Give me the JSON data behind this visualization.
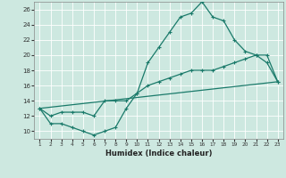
{
  "xlabel": "Humidex (Indice chaleur)",
  "bg_color": "#cde8e0",
  "grid_color": "#b0d8cc",
  "line_color": "#1a7a6a",
  "xlim": [
    0.5,
    23.5
  ],
  "ylim": [
    9,
    27
  ],
  "xticks": [
    1,
    2,
    3,
    4,
    5,
    6,
    7,
    8,
    9,
    10,
    11,
    12,
    13,
    14,
    15,
    16,
    17,
    18,
    19,
    20,
    21,
    22,
    23
  ],
  "yticks": [
    10,
    12,
    14,
    16,
    18,
    20,
    22,
    24,
    26
  ],
  "line1_x": [
    1,
    2,
    3,
    4,
    5,
    6,
    7,
    8,
    9,
    10,
    11,
    12,
    13,
    14,
    15,
    16,
    17,
    18,
    19,
    20,
    21,
    22,
    23
  ],
  "line1_y": [
    13,
    11,
    11,
    10.5,
    10,
    9.5,
    10,
    10.5,
    13,
    15,
    19,
    21,
    23,
    25,
    25.5,
    27,
    25,
    24.5,
    22,
    20.5,
    20,
    19,
    16.5
  ],
  "line2_x": [
    1,
    2,
    3,
    4,
    5,
    6,
    7,
    8,
    9,
    10,
    11,
    12,
    13,
    14,
    15,
    16,
    17,
    18,
    19,
    20,
    21,
    22,
    23
  ],
  "line2_y": [
    13,
    12,
    12.5,
    12.5,
    12.5,
    12,
    14,
    14,
    14,
    15,
    16,
    16.5,
    17,
    17.5,
    18,
    18,
    18,
    18.5,
    19,
    19.5,
    20,
    20,
    16.5
  ],
  "line3_x": [
    1,
    23
  ],
  "line3_y": [
    13,
    16.5
  ]
}
